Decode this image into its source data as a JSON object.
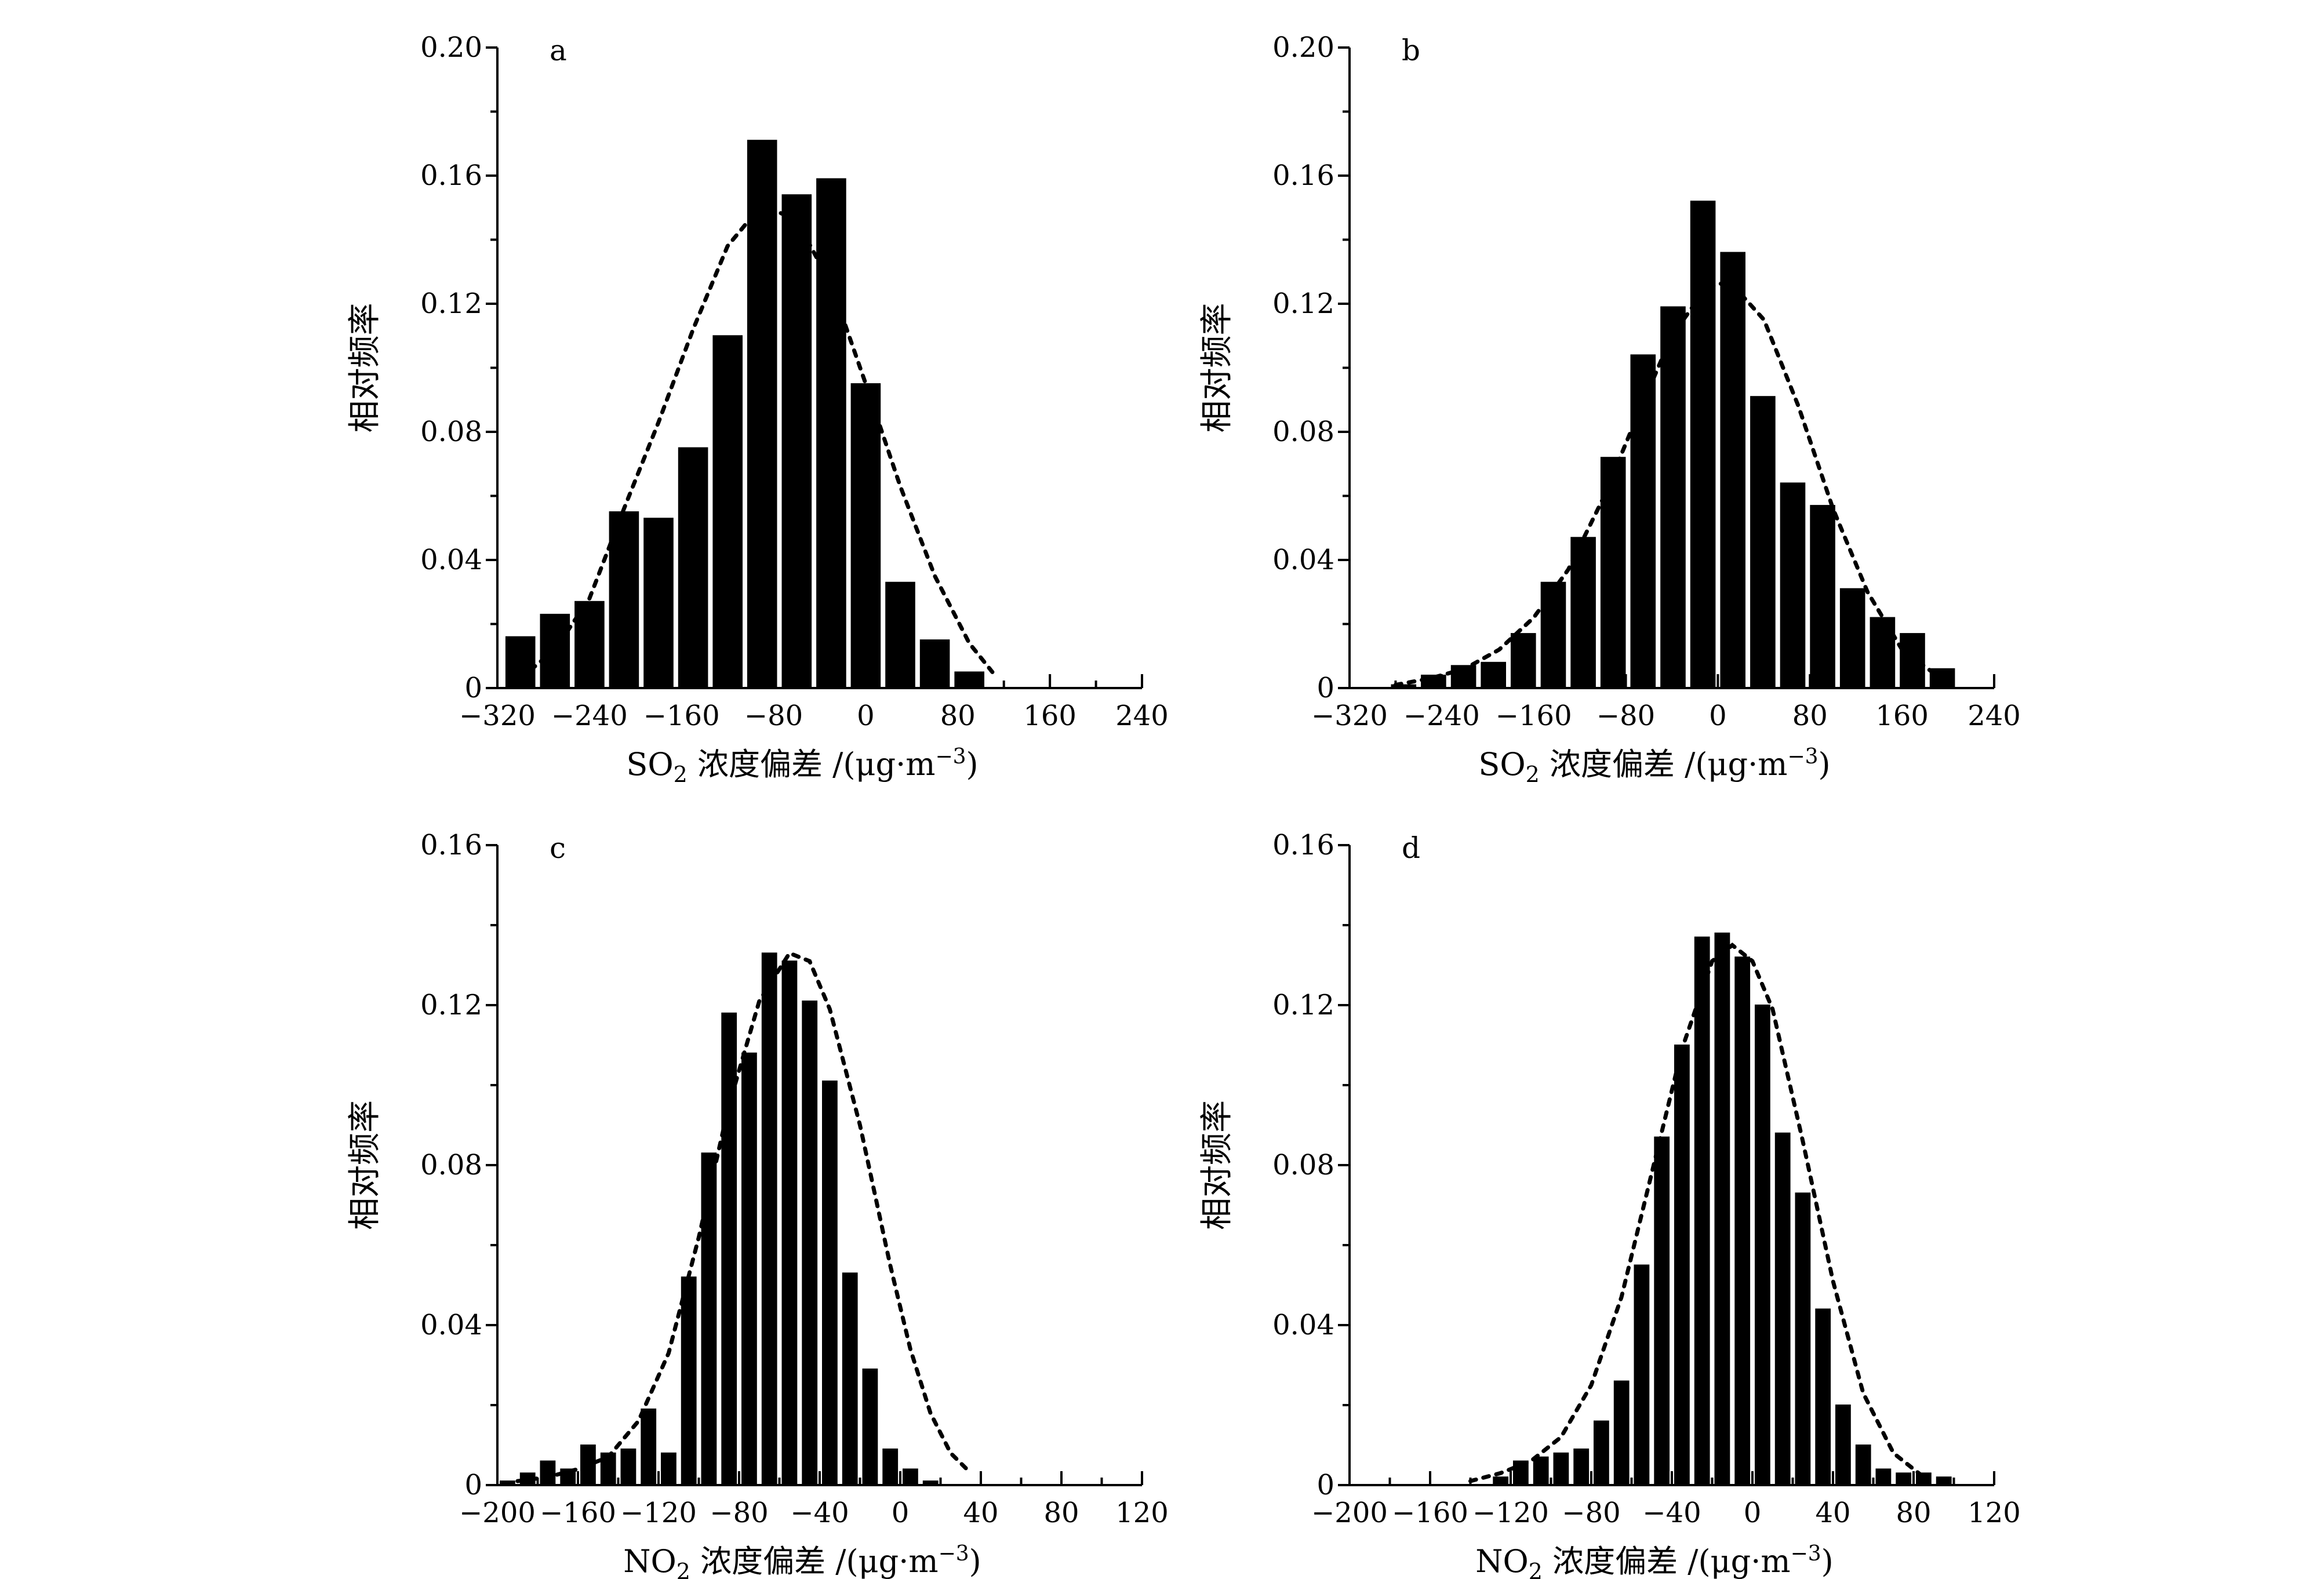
{
  "chart_data": [
    {
      "type": "bar",
      "panel": "a",
      "xlabel_main": "SO",
      "xlabel_sub": "2",
      "xlabel_rest": " 浓度偏差 /(μg·m",
      "xlabel_sup": "−3",
      "xlabel_close": ")",
      "ylabel": "相对频率",
      "xlim": [
        -320,
        240
      ],
      "ylim": [
        0,
        0.2
      ],
      "xticks": [
        -320,
        -240,
        -160,
        -80,
        0,
        80,
        160,
        240
      ],
      "xtick_labels": [
        "−320",
        "−240",
        "−160",
        "−80",
        "0",
        "80",
        "160",
        "240"
      ],
      "yticks": [
        0,
        0.04,
        0.08,
        0.12,
        0.16,
        0.2
      ],
      "ytick_labels": [
        "0",
        "0.04",
        "0.08",
        "0.12",
        "0.16",
        "0.20"
      ],
      "bin_width": 30,
      "bin_centers": [
        -300,
        -270,
        -240,
        -210,
        -180,
        -150,
        -120,
        -90,
        -60,
        -30,
        0,
        30,
        60,
        90
      ],
      "values": [
        0.016,
        0.023,
        0.027,
        0.055,
        0.053,
        0.075,
        0.11,
        0.171,
        0.154,
        0.159,
        0.095,
        0.033,
        0.015,
        0.005
      ],
      "fit_curve": {
        "style": "dotted",
        "x": [
          -300,
          -270,
          -240,
          -210,
          -180,
          -150,
          -120,
          -90,
          -60,
          -30,
          0,
          30,
          60,
          90,
          110
        ],
        "y": [
          0.003,
          0.012,
          0.028,
          0.056,
          0.083,
          0.112,
          0.138,
          0.151,
          0.146,
          0.126,
          0.095,
          0.063,
          0.035,
          0.014,
          0.005
        ]
      }
    },
    {
      "type": "bar",
      "panel": "b",
      "xlabel_main": "SO",
      "xlabel_sub": "2",
      "xlabel_rest": " 浓度偏差 /(μg·m",
      "xlabel_sup": "−3",
      "xlabel_close": ")",
      "ylabel": "相对频率",
      "xlim": [
        -320,
        240
      ],
      "ylim": [
        0,
        0.2
      ],
      "xticks": [
        -320,
        -240,
        -160,
        -80,
        0,
        80,
        160,
        240
      ],
      "xtick_labels": [
        "−320",
        "−240",
        "−160",
        "−80",
        "0",
        "80",
        "160",
        "240"
      ],
      "yticks": [
        0,
        0.04,
        0.08,
        0.12,
        0.16,
        0.2
      ],
      "ytick_labels": [
        "0",
        "0.04",
        "0.08",
        "0.12",
        "0.16",
        "0.20"
      ],
      "bin_width": 26,
      "bin_centers": [
        -273,
        -247,
        -221,
        -195,
        -169,
        -143,
        -117,
        -91,
        -65,
        -39,
        -13,
        13,
        39,
        65,
        91,
        117,
        143,
        169,
        195
      ],
      "values": [
        0.001,
        0.004,
        0.007,
        0.008,
        0.017,
        0.033,
        0.047,
        0.072,
        0.104,
        0.119,
        0.152,
        0.136,
        0.091,
        0.064,
        0.057,
        0.031,
        0.022,
        0.017,
        0.006
      ],
      "fit_curve": {
        "style": "dotted",
        "x": [
          -280,
          -250,
          -220,
          -190,
          -160,
          -130,
          -100,
          -70,
          -40,
          -10,
          10,
          40,
          70,
          100,
          130,
          160,
          190
        ],
        "y": [
          0.001,
          0.003,
          0.006,
          0.012,
          0.022,
          0.037,
          0.059,
          0.085,
          0.11,
          0.125,
          0.127,
          0.115,
          0.088,
          0.056,
          0.03,
          0.012,
          0.004
        ]
      }
    },
    {
      "type": "bar",
      "panel": "c",
      "xlabel_main": "NO",
      "xlabel_sub": "2",
      "xlabel_rest": " 浓度偏差 /(μg·m",
      "xlabel_sup": "−3",
      "xlabel_close": ")",
      "ylabel": "相对频率",
      "xlim": [
        -200,
        120
      ],
      "ylim": [
        0,
        0.16
      ],
      "xticks": [
        -200,
        -160,
        -120,
        -80,
        -40,
        0,
        40,
        80,
        120
      ],
      "xtick_labels": [
        "−200",
        "−160",
        "−120",
        "−80",
        "−40",
        "0",
        "40",
        "80",
        "120"
      ],
      "yticks": [
        0,
        0.04,
        0.08,
        0.12,
        0.16
      ],
      "ytick_labels": [
        "0",
        "0.04",
        "0.08",
        "0.12",
        "0.16"
      ],
      "bin_width": 10,
      "bin_centers": [
        -195,
        -185,
        -175,
        -165,
        -155,
        -145,
        -135,
        -125,
        -115,
        -105,
        -95,
        -85,
        -75,
        -65,
        -55,
        -45,
        -35,
        -25,
        -15,
        -5,
        5,
        15,
        25,
        35
      ],
      "values": [
        0.001,
        0.003,
        0.006,
        0.004,
        0.01,
        0.008,
        0.009,
        0.019,
        0.008,
        0.052,
        0.083,
        0.118,
        0.108,
        0.133,
        0.131,
        0.121,
        0.101,
        0.053,
        0.029,
        0.009,
        0.004,
        0.001,
        0.0,
        0.0
      ],
      "fit_curve": {
        "style": "dotted",
        "x": [
          -190,
          -175,
          -160,
          -145,
          -130,
          -115,
          -100,
          -85,
          -70,
          -55,
          -45,
          -35,
          -20,
          -5,
          5,
          15,
          25,
          35
        ],
        "y": [
          0.001,
          0.002,
          0.004,
          0.007,
          0.016,
          0.033,
          0.062,
          0.095,
          0.121,
          0.133,
          0.131,
          0.119,
          0.09,
          0.055,
          0.034,
          0.018,
          0.008,
          0.003
        ]
      }
    },
    {
      "type": "bar",
      "panel": "d",
      "xlabel_main": "NO",
      "xlabel_sub": "2",
      "xlabel_rest": " 浓度偏差 /(μg·m",
      "xlabel_sup": "−3",
      "xlabel_close": ")",
      "ylabel": "相对频率",
      "xlim": [
        -200,
        120
      ],
      "ylim": [
        0,
        0.16
      ],
      "xticks": [
        -200,
        -160,
        -120,
        -80,
        -40,
        0,
        40,
        80,
        120
      ],
      "xtick_labels": [
        "−200",
        "−160",
        "−120",
        "−80",
        "−40",
        "0",
        "40",
        "80",
        "120"
      ],
      "yticks": [
        0,
        0.04,
        0.08,
        0.12,
        0.16
      ],
      "ytick_labels": [
        "0",
        "0.04",
        "0.08",
        "0.12",
        "0.16"
      ],
      "bin_width": 10,
      "bin_centers": [
        -125,
        -115,
        -105,
        -95,
        -85,
        -75,
        -65,
        -55,
        -45,
        -35,
        -25,
        -15,
        -5,
        5,
        15,
        25,
        35,
        45,
        55,
        65,
        75,
        85,
        95
      ],
      "values": [
        0.002,
        0.006,
        0.007,
        0.008,
        0.009,
        0.016,
        0.026,
        0.055,
        0.087,
        0.11,
        0.137,
        0.138,
        0.132,
        0.12,
        0.088,
        0.073,
        0.044,
        0.02,
        0.01,
        0.004,
        0.003,
        0.003,
        0.002
      ],
      "fit_curve": {
        "style": "dotted",
        "x": [
          -140,
          -125,
          -110,
          -95,
          -80,
          -65,
          -50,
          -35,
          -20,
          -10,
          0,
          10,
          25,
          40,
          55,
          70,
          85
        ],
        "y": [
          0.001,
          0.003,
          0.006,
          0.012,
          0.025,
          0.047,
          0.078,
          0.109,
          0.131,
          0.135,
          0.131,
          0.119,
          0.086,
          0.051,
          0.023,
          0.008,
          0.002
        ]
      }
    }
  ]
}
